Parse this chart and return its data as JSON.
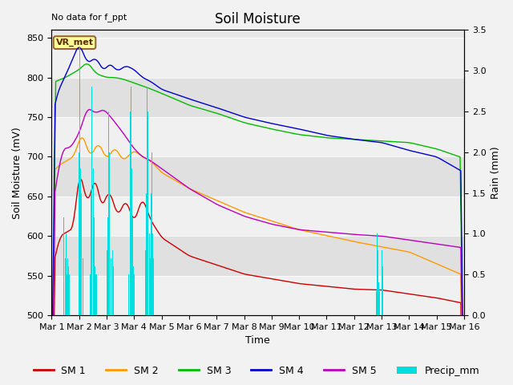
{
  "title": "Soil Moisture",
  "topleft_text": "No data for f_ppt",
  "xlabel": "Time",
  "ylabel_left": "Soil Moisture (mV)",
  "ylabel_right": "Rain (mm)",
  "ylim_left": [
    500,
    860
  ],
  "ylim_right": [
    0.0,
    3.5
  ],
  "yticks_left": [
    500,
    550,
    600,
    650,
    700,
    750,
    800,
    850
  ],
  "yticks_right": [
    0.0,
    0.5,
    1.0,
    1.5,
    2.0,
    2.5,
    3.0,
    3.5
  ],
  "xtick_labels": [
    "Mar 1",
    "Mar 2",
    "Mar 3",
    "Mar 4",
    "Mar 5",
    "Mar 6",
    "Mar 7",
    "Mar 8",
    "Mar 9",
    "Mar 10",
    "Mar 11",
    "Mar 12",
    "Mar 13",
    "Mar 14",
    "Mar 15",
    "Mar 16"
  ],
  "n_points": 3000,
  "n_days": 15,
  "station_label": "VR_met",
  "fig_bg": "#f2f2f2",
  "axes_bg": "#e8e8e8",
  "band_colors": [
    "#f0f0f0",
    "#e0e0e0"
  ],
  "grid_color": "#ffffff",
  "sm1_color": "#cc0000",
  "sm2_color": "#ff9900",
  "sm3_color": "#00bb00",
  "sm4_color": "#0000cc",
  "sm5_color": "#bb00bb",
  "precip_color": "#00dddd",
  "title_fontsize": 12,
  "label_fontsize": 9,
  "tick_fontsize": 8,
  "legend_fontsize": 9,
  "lw": 1.0
}
